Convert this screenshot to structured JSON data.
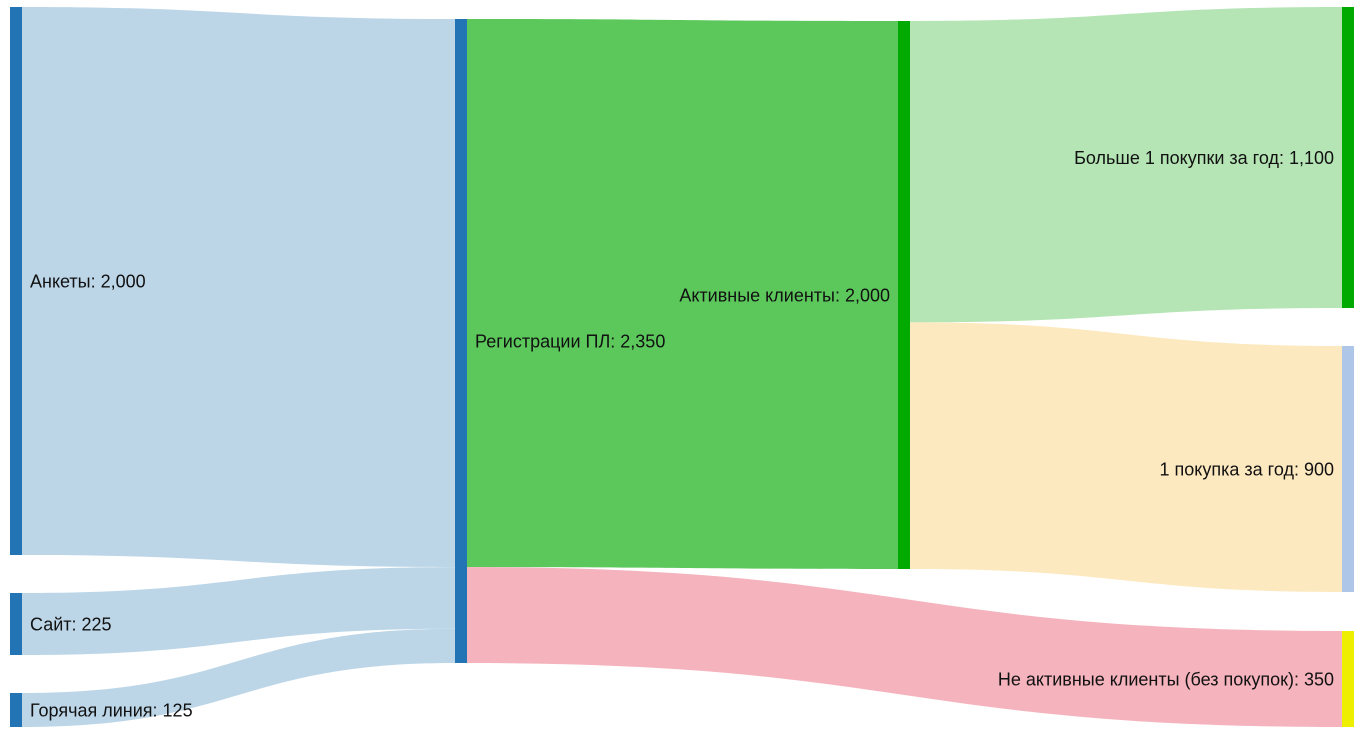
{
  "chart_data": {
    "type": "sankey",
    "unit": "",
    "nodes": [
      {
        "id": "ankety",
        "label": "Анкеты: 2,000",
        "name": "Анкеты",
        "value": 2000,
        "color": "#2374b4"
      },
      {
        "id": "sait",
        "label": "Сайт: 225",
        "name": "Сайт",
        "value": 225,
        "color": "#2374b4"
      },
      {
        "id": "goryachaya",
        "label": "Горячая линия: 125",
        "name": "Горячая линия",
        "value": 125,
        "color": "#2374b4"
      },
      {
        "id": "registracii",
        "label": "Регистрации ПЛ: 2,350",
        "name": "Регистрации ПЛ",
        "value": 2350,
        "color": "#2374b4"
      },
      {
        "id": "aktivnye",
        "label": "Активные клиенты: 2,000",
        "name": "Активные клиенты",
        "value": 2000,
        "color": "#00aa00"
      },
      {
        "id": "neaktivnye",
        "label": "Не активные клиенты (без покупок): 350",
        "name": "Не активные клиенты (без покупок)",
        "value": 350,
        "color": "#eeee00"
      },
      {
        "id": "bolshe1",
        "label": "Больше 1 покупки за год: 1,100",
        "name": "Больше 1 покупки за год",
        "value": 1100,
        "color": "#00aa00"
      },
      {
        "id": "odna",
        "label": "1 покупка за год: 900",
        "name": "1 покупка за год",
        "value": 900,
        "color": "#aec7e8"
      }
    ],
    "links": [
      {
        "source": "ankety",
        "target": "registracii",
        "value": 2000,
        "color": "#bcd6e8"
      },
      {
        "source": "sait",
        "target": "registracii",
        "value": 225,
        "color": "#bcd6e8"
      },
      {
        "source": "goryachaya",
        "target": "registracii",
        "value": 125,
        "color": "#bcd6e8"
      },
      {
        "source": "registracii",
        "target": "aktivnye",
        "value": 2000,
        "color": "#5cc85c"
      },
      {
        "source": "registracii",
        "target": "neaktivnye",
        "value": 350,
        "color": "#f4b3bd"
      },
      {
        "source": "aktivnye",
        "target": "bolshe1",
        "value": 1100,
        "color": "#b5e5b5"
      },
      {
        "source": "aktivnye",
        "target": "odna",
        "value": 900,
        "color": "#fde9c0"
      }
    ]
  }
}
